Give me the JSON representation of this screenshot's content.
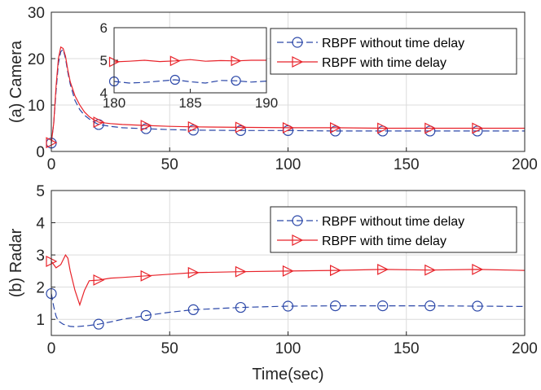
{
  "chart_data": [
    {
      "type": "line",
      "panel": "top",
      "ylabel": "(a) Camera",
      "xlabel": "",
      "xlim": [
        0,
        200
      ],
      "ylim": [
        0,
        30
      ],
      "xticks": [
        "0",
        "50",
        "100",
        "150",
        "200"
      ],
      "yticks": [
        "0",
        "10",
        "20",
        "30"
      ],
      "grid": true,
      "legend_position": "top-right",
      "series": [
        {
          "name": "RBPF without time delay",
          "color": "#2b47a8",
          "style": "dashed",
          "marker": "circle",
          "x": [
            0,
            1,
            2,
            3,
            4,
            5,
            6,
            7,
            8,
            10,
            12,
            14,
            16,
            18,
            20,
            25,
            30,
            40,
            50,
            60,
            80,
            100,
            120,
            140,
            160,
            180,
            200
          ],
          "y": [
            1.8,
            6,
            13,
            19,
            21.5,
            22,
            20,
            17,
            14.5,
            11,
            9,
            7.8,
            7,
            6.3,
            5.8,
            5.4,
            5.1,
            4.9,
            4.7,
            4.6,
            4.5,
            4.5,
            4.4,
            4.4,
            4.4,
            4.4,
            4.4
          ],
          "marker_x": [
            0,
            20,
            40,
            60,
            80,
            100,
            120,
            140,
            160,
            180
          ]
        },
        {
          "name": "RBPF with time delay",
          "color": "#e8232a",
          "style": "solid",
          "marker": "triangle-right",
          "x": [
            0,
            1,
            2,
            3,
            4,
            5,
            6,
            7,
            8,
            10,
            12,
            14,
            16,
            18,
            20,
            25,
            30,
            40,
            50,
            60,
            80,
            100,
            120,
            140,
            160,
            180,
            200
          ],
          "y": [
            1.9,
            6,
            14,
            20,
            22.5,
            22.2,
            20.5,
            17.5,
            15,
            12,
            10,
            8.5,
            7.5,
            6.8,
            6.3,
            6,
            5.8,
            5.6,
            5.4,
            5.3,
            5.2,
            5.1,
            5.1,
            5.0,
            5.0,
            5.0,
            5.0
          ],
          "marker_x": [
            0,
            20,
            40,
            60,
            80,
            100,
            120,
            140,
            160,
            180
          ]
        }
      ],
      "inset": {
        "xlim": [
          180,
          190
        ],
        "ylim": [
          4,
          6
        ],
        "xticks": [
          "180",
          "185",
          "190"
        ],
        "yticks": [
          "4",
          "5",
          "6"
        ],
        "series": [
          {
            "name": "RBPF without time delay",
            "color": "#2b47a8",
            "style": "dashed",
            "marker": "circle",
            "x": [
              180,
              181,
              182,
              183,
              184,
              185,
              186,
              187,
              188,
              189,
              190
            ],
            "y": [
              4.35,
              4.3,
              4.32,
              4.36,
              4.4,
              4.34,
              4.3,
              4.38,
              4.37,
              4.33,
              4.36
            ],
            "marker_x": [
              180,
              184,
              188
            ]
          },
          {
            "name": "RBPF with time delay",
            "color": "#e8232a",
            "style": "solid",
            "marker": "triangle-right",
            "x": [
              180,
              181,
              182,
              183,
              184,
              185,
              186,
              187,
              188,
              189,
              190
            ],
            "y": [
              4.95,
              4.97,
              5.0,
              4.96,
              4.98,
              5.02,
              4.97,
              4.99,
              4.98,
              5.0,
              5.0
            ],
            "marker_x": [
              180,
              184,
              188
            ]
          }
        ]
      }
    },
    {
      "type": "line",
      "panel": "bottom",
      "ylabel": "(b) Radar",
      "xlabel": "Time(sec)",
      "xlim": [
        0,
        200
      ],
      "ylim": [
        0.5,
        5
      ],
      "xticks": [
        "0",
        "50",
        "100",
        "150",
        "200"
      ],
      "yticks": [
        "1",
        "2",
        "3",
        "4",
        "5"
      ],
      "grid": true,
      "legend_position": "top-right",
      "series": [
        {
          "name": "RBPF without time delay",
          "color": "#2b47a8",
          "style": "dashed",
          "marker": "circle",
          "x": [
            0,
            1,
            2,
            3,
            5,
            8,
            10,
            15,
            20,
            25,
            30,
            40,
            50,
            60,
            80,
            100,
            120,
            140,
            160,
            180,
            200
          ],
          "y": [
            1.8,
            1.4,
            1.1,
            0.95,
            0.85,
            0.78,
            0.77,
            0.8,
            0.85,
            0.92,
            1.0,
            1.12,
            1.22,
            1.3,
            1.37,
            1.41,
            1.42,
            1.42,
            1.42,
            1.41,
            1.4
          ],
          "marker_x": [
            0,
            20,
            40,
            60,
            80,
            100,
            120,
            140,
            160,
            180
          ]
        },
        {
          "name": "RBPF with time delay",
          "color": "#e8232a",
          "style": "solid",
          "marker": "triangle-right",
          "x": [
            0,
            2,
            4,
            6,
            7,
            8,
            10,
            12,
            14,
            16,
            20,
            25,
            30,
            40,
            50,
            60,
            80,
            100,
            120,
            140,
            160,
            180,
            200
          ],
          "y": [
            2.8,
            2.6,
            2.7,
            3.0,
            2.9,
            2.5,
            1.9,
            1.45,
            1.9,
            2.2,
            2.22,
            2.28,
            2.3,
            2.35,
            2.4,
            2.45,
            2.48,
            2.5,
            2.52,
            2.55,
            2.53,
            2.55,
            2.52
          ],
          "marker_x": [
            0,
            20,
            40,
            60,
            80,
            100,
            120,
            140,
            160,
            180
          ]
        }
      ]
    }
  ]
}
